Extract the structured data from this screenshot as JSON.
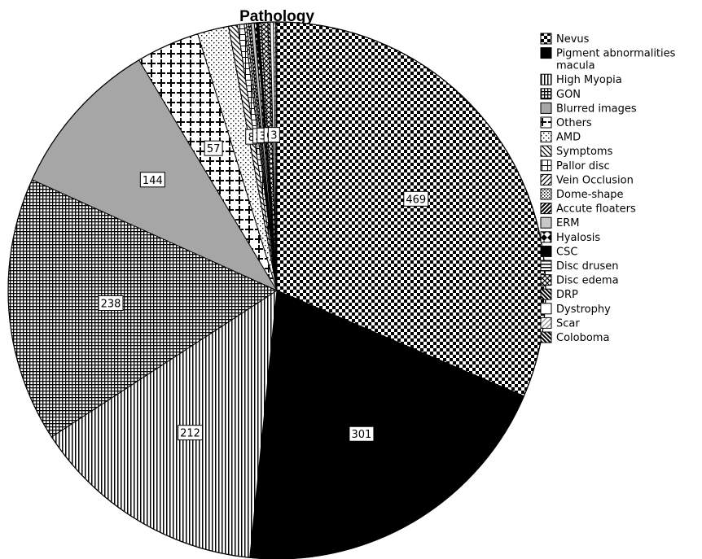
{
  "chart_data": {
    "type": "pie",
    "title": "Pathology",
    "legend_position": "right",
    "start_direction": "top, clockwise",
    "slices": [
      {
        "label": "Nevus",
        "value": 469,
        "pattern": "checker"
      },
      {
        "label": "Pigment abnormalities macula",
        "value": 301,
        "pattern": "solid-black"
      },
      {
        "label": "High Myopia",
        "value": 212,
        "pattern": "vertical"
      },
      {
        "label": "GON",
        "value": 238,
        "pattern": "grid-dense"
      },
      {
        "label": "Blurred images",
        "value": 144,
        "pattern": "gray"
      },
      {
        "label": "Others",
        "value": 57,
        "pattern": "plus"
      },
      {
        "label": "AMD",
        "value": 28,
        "pattern": "dots"
      },
      {
        "label": "Symptoms",
        "value": 8,
        "pattern": "diag-back"
      },
      {
        "label": "Pallor disc",
        "value": 6,
        "pattern": "grid"
      },
      {
        "label": "Vein Occlusion",
        "value": 2,
        "pattern": "diag-fwd"
      },
      {
        "label": "Dome-shape",
        "value": 2,
        "pattern": "dots-small"
      },
      {
        "label": "Accute floaters",
        "value": 2,
        "pattern": "diag-fwd-bold"
      },
      {
        "label": "ERM",
        "value": 3,
        "pattern": "light-gray"
      },
      {
        "label": "Hyalosis",
        "value": 2,
        "pattern": "diamond"
      },
      {
        "label": "CSC",
        "value": 2,
        "pattern": "solid-black"
      },
      {
        "label": "Disc drusen",
        "value": 2,
        "pattern": "horizontal"
      },
      {
        "label": "Disc edema",
        "value": 6,
        "pattern": "crosshatch"
      },
      {
        "label": "DRP",
        "value": 2,
        "pattern": "diag-back-bold"
      },
      {
        "label": "Dystrophy",
        "value": 3,
        "pattern": "white"
      },
      {
        "label": "Scar",
        "value": 2,
        "pattern": "diag-fwd-light"
      },
      {
        "label": "Coloboma",
        "value": 1,
        "pattern": "diag-back-bold"
      }
    ],
    "shown_data_labels": [
      "Nevus",
      "Pigment abnormalities macula",
      "High Myopia",
      "GON",
      "Blurred images",
      "Others",
      "Symptoms",
      "Vein Occlusion",
      "ERM",
      "Disc edema",
      "Dystrophy"
    ]
  }
}
